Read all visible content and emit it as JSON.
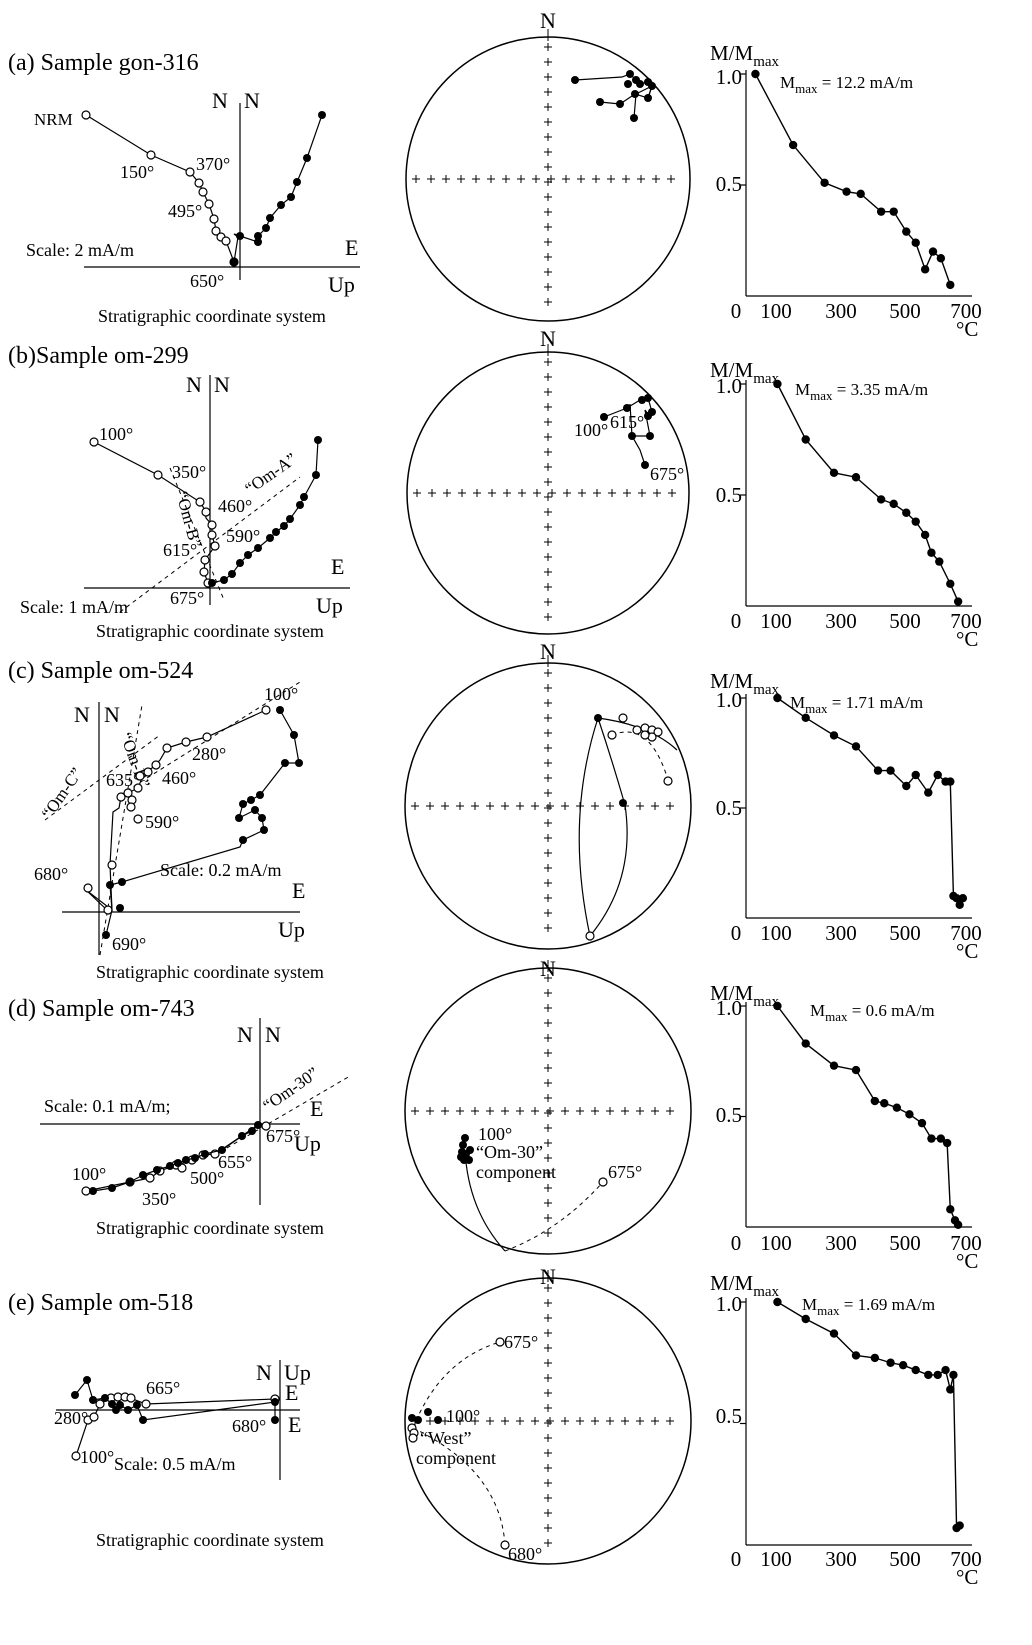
{
  "figure": {
    "samples": [
      {
        "label": "(a) Sample gon-316",
        "zij": {
          "axes_top": [
            "N",
            "N"
          ],
          "axis_e": "E",
          "axis_up": "Up",
          "scale": "Scale: 2 mA/m",
          "coord": "Stratigraphic coordinate system",
          "temp_labels": [
            "NRM",
            "150°",
            "370°",
            "495°",
            "650°"
          ],
          "extra_labels": []
        },
        "stereo": {
          "north": "N",
          "temp_labels": [],
          "component_labels": []
        },
        "demag": {
          "ylabel_main": "M/M",
          "ylabel_sub": "max",
          "mmax_main": "M",
          "mmax_sub": "max",
          "mmax_value": " = 12.2 mA/m",
          "yticks": [
            "1.0",
            "0.5"
          ],
          "xticks": [
            "0",
            "100",
            "300",
            "500",
            "700"
          ],
          "xunit": "°C"
        }
      },
      {
        "label": "(b)Sample om-299",
        "zij": {
          "axes_top": [
            "N",
            "N"
          ],
          "axis_e": "E",
          "axis_up": "Up",
          "scale": "Scale: 1 mA/m",
          "coord": "Stratigraphic coordinate system",
          "temp_labels": [
            "100°",
            "350°",
            "460°",
            "590°",
            "615°",
            "675°"
          ],
          "extra_labels": [
            "“Om-A”",
            "“Om-B”"
          ]
        },
        "stereo": {
          "north": "N",
          "temp_labels": [
            "100°",
            "615°",
            "675°"
          ],
          "component_labels": []
        },
        "demag": {
          "ylabel_main": "M/M",
          "ylabel_sub": "max",
          "mmax_main": "M",
          "mmax_sub": "max",
          "mmax_value": " = 3.35 mA/m",
          "yticks": [
            "1.0",
            "0.5"
          ],
          "xticks": [
            "0",
            "100",
            "300",
            "500",
            "700"
          ],
          "xunit": "°C"
        }
      },
      {
        "label": "(c) Sample om-524",
        "zij": {
          "axes_top": [
            "N",
            "N"
          ],
          "axis_e": "E",
          "axis_up": "Up",
          "scale": "Scale: 0.2 mA/m",
          "coord": "Stratigraphic coordinate system",
          "temp_labels": [
            "100°",
            "280°",
            "460°",
            "635°",
            "590°",
            "680°",
            "690°"
          ],
          "extra_labels": [
            "“Om-B”",
            "“Om-C”"
          ]
        },
        "stereo": {
          "north": "N",
          "temp_labels": [],
          "component_labels": []
        },
        "demag": {
          "ylabel_main": "M/M",
          "ylabel_sub": "max",
          "mmax_main": "M",
          "mmax_sub": "max",
          "mmax_value": " = 1.71 mA/m",
          "yticks": [
            "1.0",
            "0.5"
          ],
          "xticks": [
            "0",
            "100",
            "300",
            "500",
            "700"
          ],
          "xunit": "°C"
        }
      },
      {
        "label": "(d) Sample om-743",
        "zij": {
          "axes_top": [
            "N",
            "N"
          ],
          "axis_e": "E",
          "axis_up": "Up",
          "scale": "Scale: 0.1 mA/m;",
          "coord": "Stratigraphic coordinate system",
          "temp_labels": [
            "100°",
            "350°",
            "500°",
            "655°",
            "675°"
          ],
          "extra_labels": [
            "“Om-30”"
          ]
        },
        "stereo": {
          "north": "N",
          "temp_labels": [
            "100°",
            "675°"
          ],
          "component_labels": [
            "“Om-30”",
            "component"
          ]
        },
        "demag": {
          "ylabel_main": "M/M",
          "ylabel_sub": "max",
          "mmax_main": "M",
          "mmax_sub": "max",
          "mmax_value": " = 0.6 mA/m",
          "yticks": [
            "1.0",
            "0.5"
          ],
          "xticks": [
            "0",
            "100",
            "300",
            "500",
            "700"
          ],
          "xunit": "°C"
        }
      },
      {
        "label": "(e) Sample om-518",
        "zij": {
          "axes_top": [
            "N",
            "Up"
          ],
          "axis_e": "E",
          "axis_up": "E",
          "scale": "Scale: 0.5 mA/m",
          "coord": "Stratigraphic coordinate system",
          "temp_labels": [
            "280°",
            "665°",
            "680°",
            "100°"
          ],
          "extra_labels": []
        },
        "stereo": {
          "north": "N",
          "temp_labels": [
            "675°",
            "100°",
            "680°"
          ],
          "component_labels": [
            "“West”",
            "component"
          ]
        },
        "demag": {
          "ylabel_main": "M/M",
          "ylabel_sub": "max",
          "mmax_main": "M",
          "mmax_sub": "max",
          "mmax_value": " = 1.69 mA/m",
          "yticks": [
            "1.0",
            "0.5"
          ],
          "xticks": [
            "0",
            "100",
            "300",
            "500",
            "700"
          ],
          "xunit": "°C"
        }
      }
    ]
  },
  "chart_data": [
    {
      "type": "line",
      "panel": "(a) Sample gon-316",
      "xlabel": "°C",
      "ylabel": "M/Mmax",
      "xlim": [
        0,
        700
      ],
      "ylim": [
        0,
        1
      ],
      "annotation": "Mmax = 12.2 mA/m",
      "series": [
        {
          "x": [
            30,
            150,
            250,
            320,
            365,
            430,
            470,
            510,
            540,
            570,
            595,
            620,
            650
          ],
          "values": [
            1.0,
            0.68,
            0.51,
            0.47,
            0.46,
            0.38,
            0.38,
            0.29,
            0.24,
            0.12,
            0.2,
            0.17,
            0.05
          ]
        }
      ]
    },
    {
      "type": "line",
      "panel": "(b)Sample om-299",
      "xlabel": "°C",
      "ylabel": "M/Mmax",
      "xlim": [
        0,
        700
      ],
      "ylim": [
        0,
        1
      ],
      "annotation": "Mmax = 3.35 mA/m",
      "series": [
        {
          "x": [
            100,
            190,
            280,
            350,
            430,
            470,
            510,
            540,
            570,
            590,
            615,
            650,
            675
          ],
          "values": [
            1.0,
            0.75,
            0.6,
            0.58,
            0.48,
            0.46,
            0.42,
            0.38,
            0.32,
            0.24,
            0.2,
            0.1,
            0.02
          ]
        }
      ]
    },
    {
      "type": "line",
      "panel": "(c) Sample om-524",
      "xlabel": "°C",
      "ylabel": "M/Mmax",
      "xlim": [
        0,
        700
      ],
      "ylim": [
        0,
        1
      ],
      "annotation": "Mmax = 1.71 mA/m",
      "series": [
        {
          "x": [
            100,
            190,
            280,
            350,
            420,
            460,
            510,
            540,
            580,
            610,
            635,
            650,
            660,
            670,
            680,
            690
          ],
          "values": [
            1.0,
            0.91,
            0.83,
            0.78,
            0.67,
            0.67,
            0.6,
            0.65,
            0.57,
            0.65,
            0.62,
            0.62,
            0.1,
            0.09,
            0.06,
            0.09
          ]
        }
      ]
    },
    {
      "type": "line",
      "panel": "(d) Sample om-743",
      "xlabel": "°C",
      "ylabel": "M/Mmax",
      "xlim": [
        0,
        700
      ],
      "ylim": [
        0,
        1
      ],
      "annotation": "Mmax = 0.6 mA/m",
      "series": [
        {
          "x": [
            100,
            190,
            280,
            350,
            410,
            440,
            480,
            520,
            560,
            590,
            620,
            640,
            650,
            665,
            675
          ],
          "values": [
            1.0,
            0.83,
            0.73,
            0.71,
            0.57,
            0.56,
            0.54,
            0.51,
            0.47,
            0.4,
            0.4,
            0.38,
            0.08,
            0.03,
            0.01
          ]
        }
      ]
    },
    {
      "type": "line",
      "panel": "(e) Sample om-518",
      "xlabel": "°C",
      "ylabel": "M/Mmax",
      "xlim": [
        0,
        700
      ],
      "ylim": [
        0,
        1
      ],
      "annotation": "Mmax = 1.69 mA/m",
      "series": [
        {
          "x": [
            100,
            190,
            280,
            350,
            410,
            460,
            500,
            540,
            580,
            610,
            635,
            650,
            660,
            670,
            680
          ],
          "values": [
            1.0,
            0.93,
            0.87,
            0.78,
            0.77,
            0.75,
            0.74,
            0.72,
            0.7,
            0.7,
            0.72,
            0.64,
            0.7,
            0.07,
            0.08
          ]
        }
      ]
    }
  ]
}
